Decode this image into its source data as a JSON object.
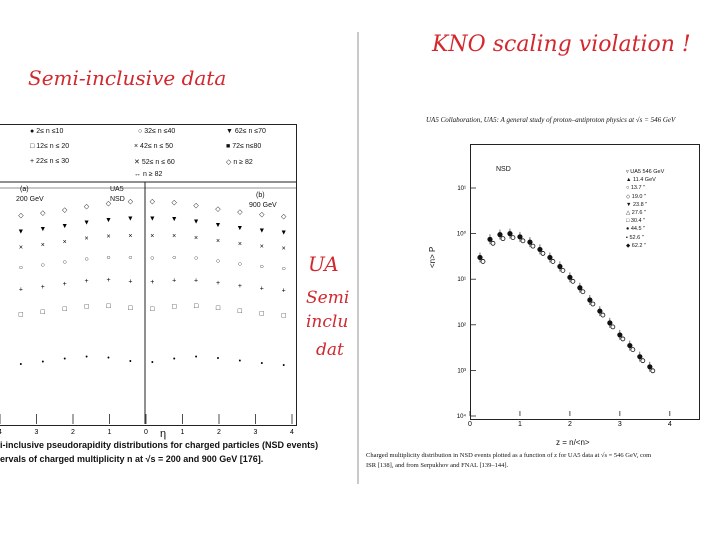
{
  "annotations": {
    "left_title": "Semi-inclusive data",
    "right_title": "KNO scaling violation !",
    "side_1": "UA",
    "side_2": "Semi",
    "side_3": "inclu",
    "side_4": "dat"
  },
  "left": {
    "legend": [
      [
        "2≤ n ≤10",
        "32≤ n ≤40",
        "62≤ n ≤70"
      ],
      [
        "12≤ n ≤ 20",
        "42≤ n ≤ 50",
        "72≤ n≤80"
      ],
      [
        "22≤ n ≤ 30",
        "52≤ n ≤ 60",
        "n ≥ 82"
      ]
    ],
    "label_a": "(a)",
    "label_a_energy": "200 GeV",
    "label_b": "(b)",
    "label_b_energy": "900 GeV",
    "ua5": "UA5",
    "nsd": "NSD",
    "eta_label": "η",
    "caption_1": "i-inclusive pseudorapidity distributions for charged particles (NSD events)",
    "caption_2": "ervals of charged multiplicity n at √s = 200 and 900 GeV [176]."
  },
  "right": {
    "header": "UA5 Collaboration, UA5: A general study of proton–antiproton physics at √s = 546 GeV",
    "nsd": "NSD",
    "ylabel": "<n> P",
    "xlabel": "z = n/<n>",
    "legend": [
      [
        "UA5  546 GeV"
      ],
      [
        "11.4 GeV"
      ],
      [
        "13.7  \""
      ],
      [
        "19.0  \""
      ],
      [
        "23.8  \""
      ],
      [
        "27.6  \""
      ],
      [
        "30.4  \""
      ],
      [
        "44.5  \""
      ],
      [
        "52.6  \""
      ],
      [
        "62.2  \""
      ]
    ],
    "caption_1": "Charged multiplicity distribution in NSD events plotted as a function of z for UA5 data at √s = 546 GeV, com",
    "caption_2": "ISR [138], and from Serpukhov and FNAL [139–144]."
  },
  "chart_data": [
    {
      "type": "scatter",
      "title": "",
      "xlabel": "η",
      "ylabel": "",
      "xticks": [
        "4",
        "3",
        "2",
        "1",
        "0",
        "1",
        "2",
        "3",
        "4"
      ],
      "note": "pseudorapidity distributions for multiplicity intervals, 200 GeV (a) and 900 GeV (b)"
    },
    {
      "type": "scatter",
      "title": "",
      "xlabel": "z = n/<n>",
      "ylabel": "<n> P",
      "log_y": true,
      "xlim": [
        0,
        4
      ],
      "xticks": [
        "0",
        "1",
        "2",
        "3",
        "4"
      ],
      "yticks": [
        "10⁴",
        "10³",
        "10²",
        "10¹",
        "10⁰",
        "10¹"
      ],
      "series": [
        {
          "name": "UA5 546 GeV",
          "x": [
            0.2,
            0.4,
            0.6,
            0.8,
            1.0,
            1.2,
            1.4,
            1.6,
            1.8,
            2.0,
            2.2,
            2.4,
            2.6,
            2.8,
            3.0,
            3.2,
            3.4,
            3.6
          ],
          "y": [
            0.3,
            0.75,
            0.95,
            1.0,
            0.85,
            0.65,
            0.45,
            0.3,
            0.19,
            0.11,
            0.065,
            0.035,
            0.02,
            0.011,
            0.006,
            0.0035,
            0.002,
            0.0012
          ]
        }
      ]
    }
  ]
}
